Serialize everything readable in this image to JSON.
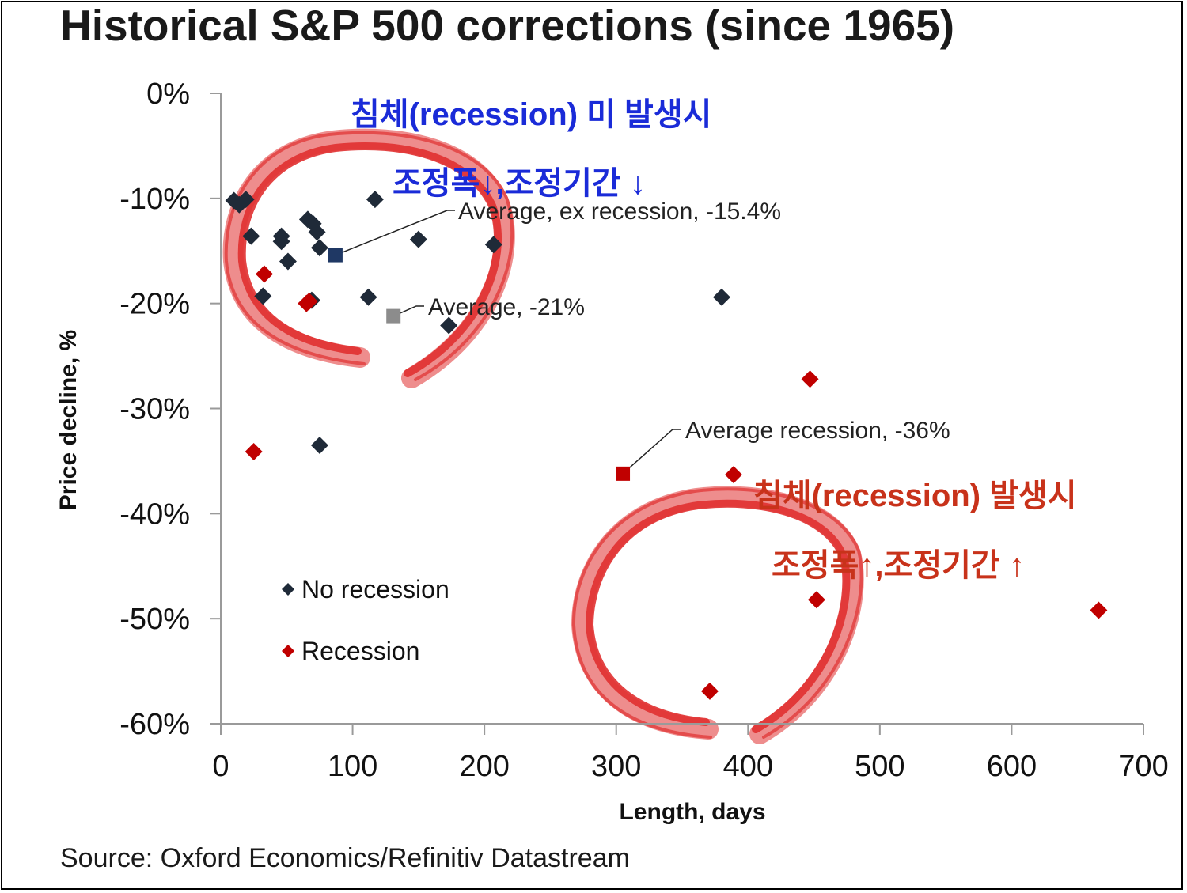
{
  "title": "Historical S&P 500 corrections (since 1965)",
  "source": "Source: Oxford Economics/Refinitiv Datastream",
  "chart_data": {
    "type": "scatter",
    "title": "Historical S&P 500 corrections (since 1965)",
    "xlabel": "Length, days",
    "ylabel": "Price decline, %",
    "xlim": [
      0,
      700
    ],
    "ylim": [
      -60,
      0
    ],
    "x_ticks": [
      "0",
      "100",
      "200",
      "300",
      "400",
      "500",
      "600",
      "700"
    ],
    "y_ticks": [
      "0%",
      "-10%",
      "-20%",
      "-30%",
      "-40%",
      "-50%",
      "-60%"
    ],
    "legend": [
      "No recession",
      "Recession"
    ],
    "legend_position": "bottom-left",
    "series": [
      {
        "name": "No recession",
        "color": "#1f2a38",
        "points": [
          [
            10,
            -10.2
          ],
          [
            14,
            -10.6
          ],
          [
            19,
            -10.1
          ],
          [
            23,
            -13.6
          ],
          [
            32,
            -19.3
          ],
          [
            46,
            -13.6
          ],
          [
            46,
            -14.1
          ],
          [
            51,
            -16.0
          ],
          [
            66,
            -12.0
          ],
          [
            69,
            -19.7
          ],
          [
            70,
            -12.4
          ],
          [
            73,
            -13.2
          ],
          [
            75,
            -14.7
          ],
          [
            75,
            -33.5
          ],
          [
            112,
            -19.4
          ],
          [
            117,
            -10.1
          ],
          [
            150,
            -13.9
          ],
          [
            173,
            -22.1
          ],
          [
            207,
            -14.4
          ],
          [
            380,
            -19.4
          ]
        ]
      },
      {
        "name": "Recession",
        "color": "#c00000",
        "points": [
          [
            25,
            -34.1
          ],
          [
            33,
            -17.2
          ],
          [
            65,
            -20.0
          ],
          [
            67,
            -19.8
          ],
          [
            371,
            -56.9
          ],
          [
            389,
            -36.3
          ],
          [
            447,
            -27.2
          ],
          [
            452,
            -48.2
          ],
          [
            666,
            -49.2
          ]
        ]
      }
    ],
    "averages": [
      {
        "name": "Average, ex recession",
        "label": "Average, ex recession, -15.4%",
        "x": 87,
        "y": -15.4,
        "color": "#1f3864"
      },
      {
        "name": "Average",
        "label": "Average, -21%",
        "x": 131,
        "y": -21.2,
        "color": "#8c8c8c"
      },
      {
        "name": "Average recession",
        "label": "Average recession, -36%",
        "x": 305,
        "y": -36.2,
        "color": "#c00000"
      }
    ]
  },
  "annotations": {
    "no_recession_line1": "침체(recession) 미 발생시",
    "no_recession_line2": "조정폭↓,조정기간 ↓",
    "recession_line1": "침체(recession) 발생시",
    "recession_line2": "조정폭↑,조정기간 ↑",
    "no_recession_color": "#1a2bd8",
    "recession_color": "#c8321a",
    "brush_color": "#e03030"
  }
}
